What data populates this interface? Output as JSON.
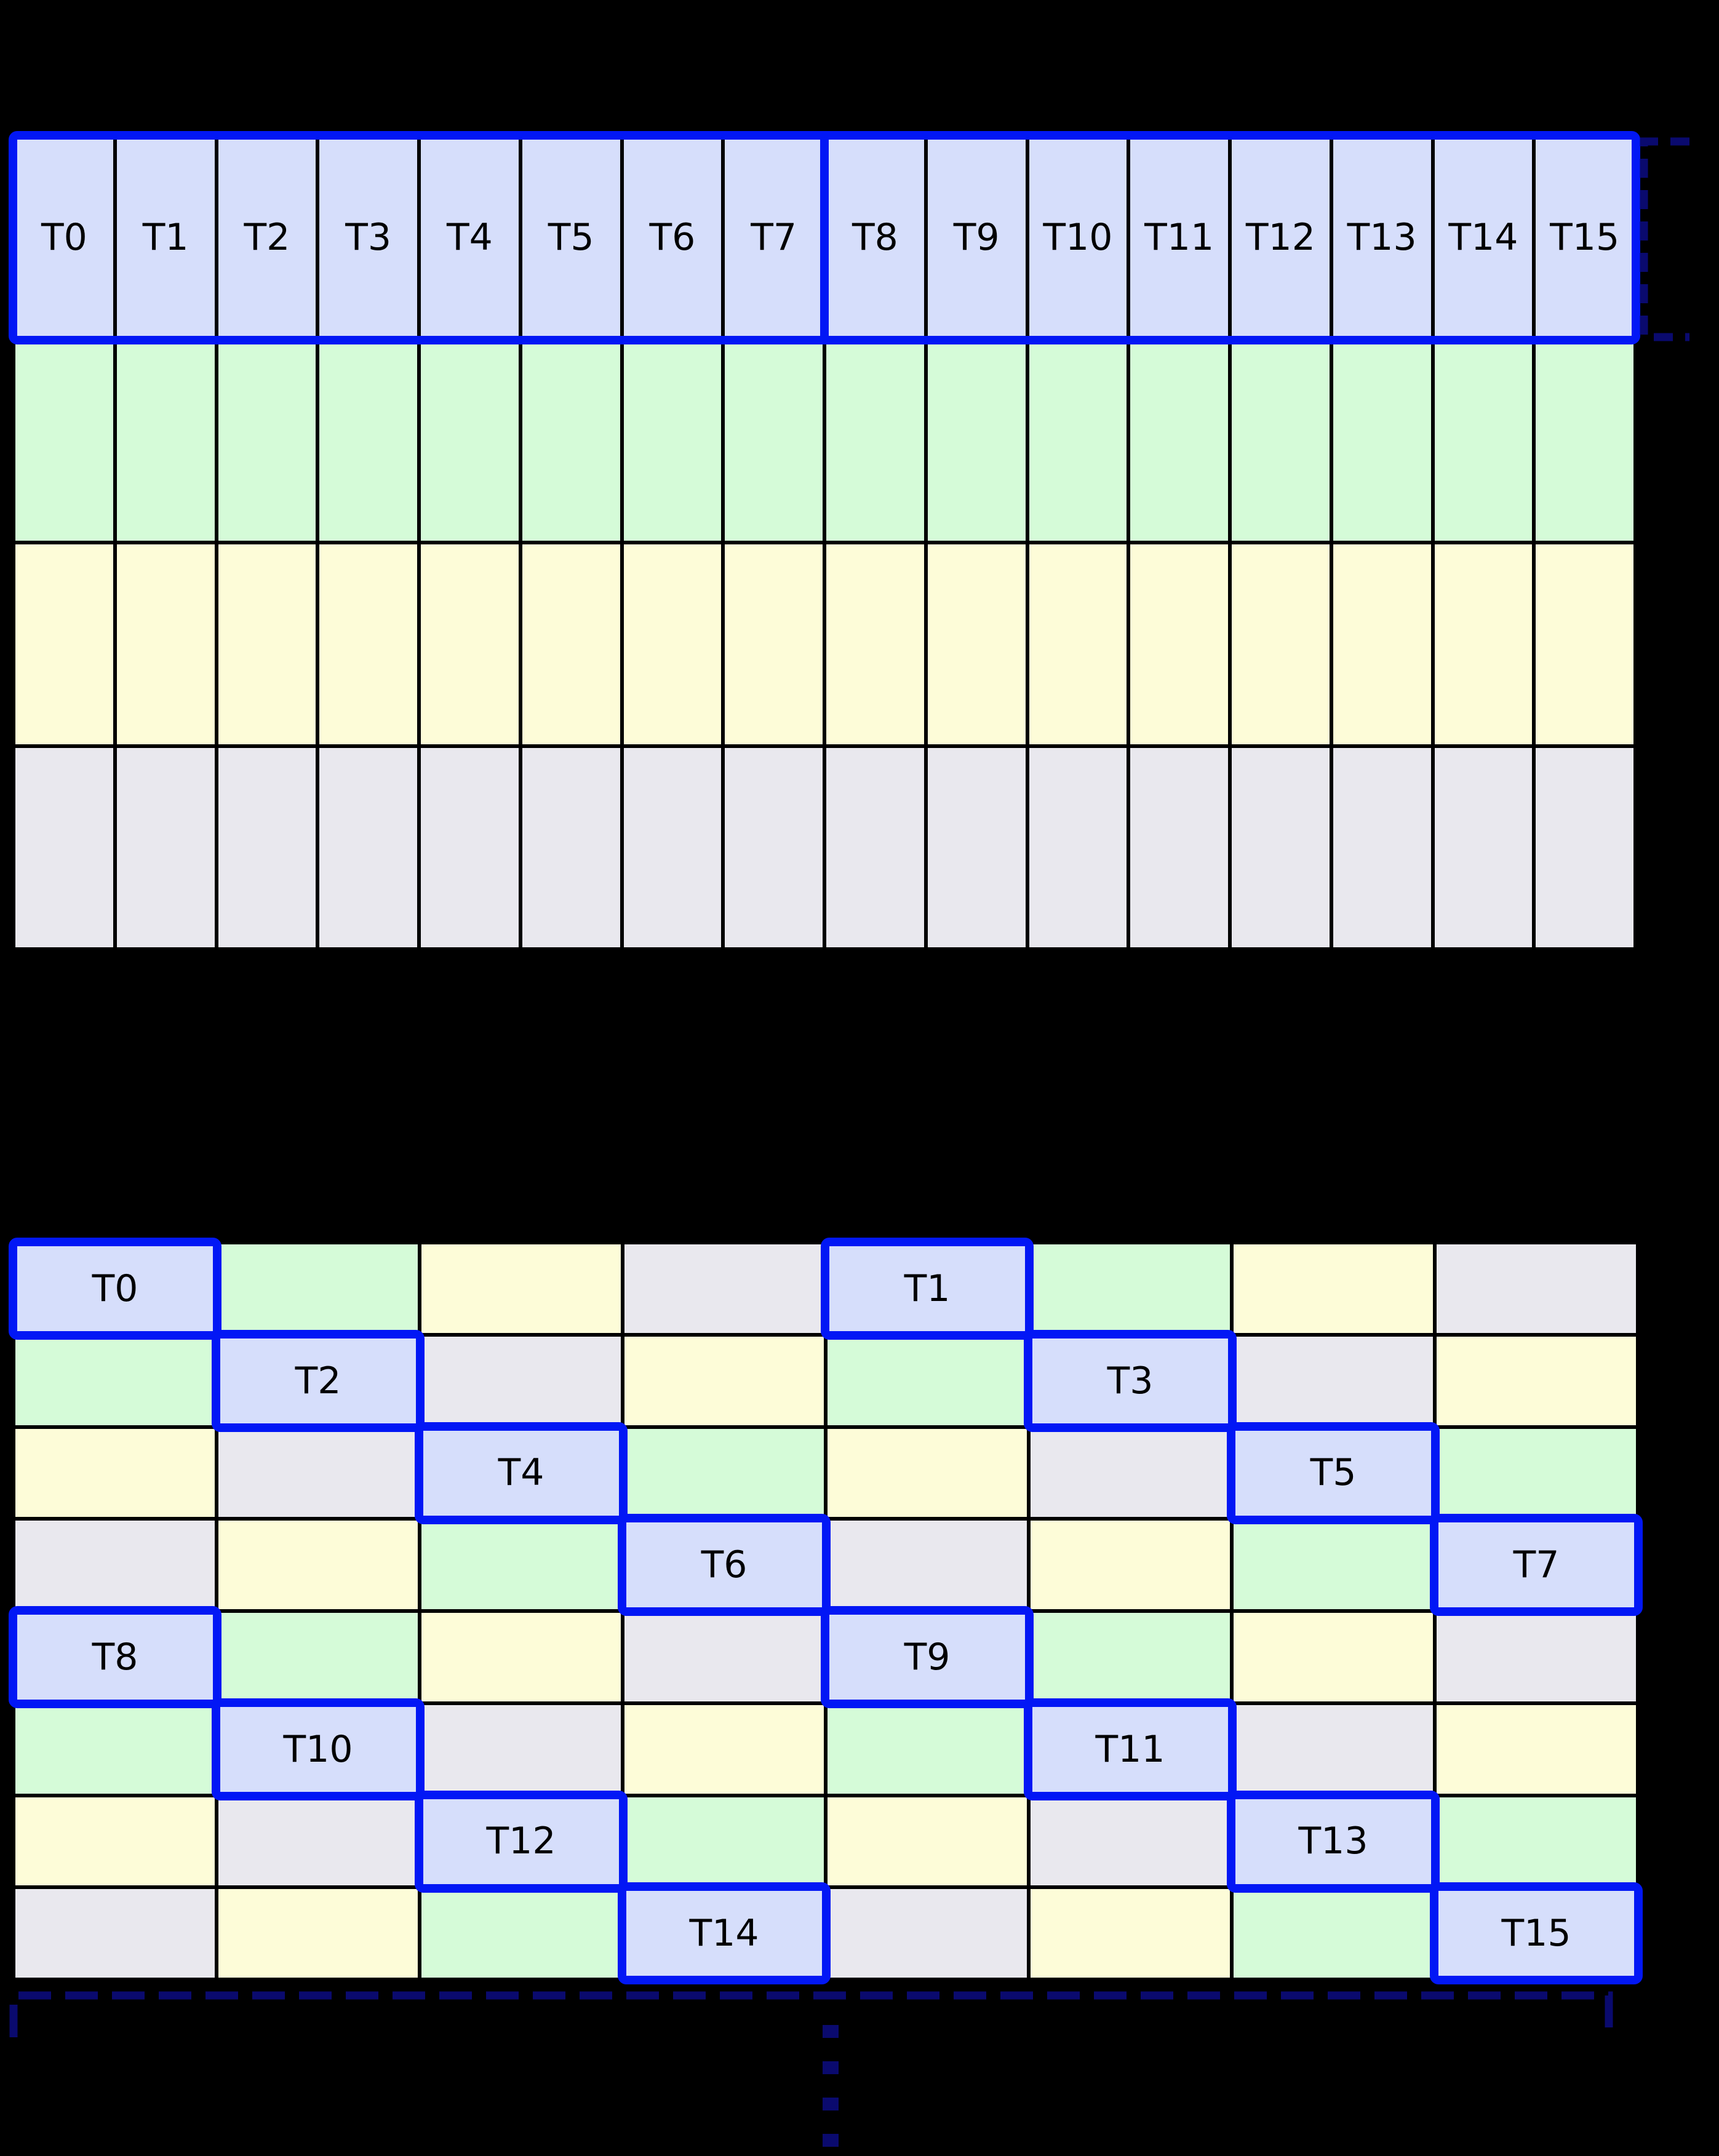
{
  "colors": {
    "background": "#000000",
    "grid_line": "#000000",
    "cell_blue": "#d6defb",
    "cell_green": "#d5fbd8",
    "cell_yellow": "#fdfcd8",
    "cell_gray": "#e9e8ee",
    "highlight_border": "#0217f5",
    "bracket": "#0a0a6e",
    "label_color": "#000000"
  },
  "table1": {
    "rows": 4,
    "cols": 16,
    "row_colors": [
      "blue",
      "green",
      "yellow",
      "gray"
    ],
    "thread_labels": [
      "T0",
      "T1",
      "T2",
      "T3",
      "T4",
      "T5",
      "T6",
      "T7",
      "T8",
      "T9",
      "T10",
      "T11",
      "T12",
      "T13",
      "T14",
      "T15"
    ],
    "highlight_groups": [
      [
        0,
        7
      ],
      [
        8,
        15
      ]
    ]
  },
  "table2": {
    "rows": 8,
    "cols": 8,
    "cells": [
      [
        [
          "blue",
          "T0"
        ],
        [
          "green",
          ""
        ],
        [
          "yellow",
          ""
        ],
        [
          "gray",
          ""
        ],
        [
          "blue",
          "T1"
        ],
        [
          "green",
          ""
        ],
        [
          "yellow",
          ""
        ],
        [
          "gray",
          ""
        ]
      ],
      [
        [
          "green",
          ""
        ],
        [
          "blue",
          "T2"
        ],
        [
          "gray",
          ""
        ],
        [
          "yellow",
          ""
        ],
        [
          "green",
          ""
        ],
        [
          "blue",
          "T3"
        ],
        [
          "gray",
          ""
        ],
        [
          "yellow",
          ""
        ]
      ],
      [
        [
          "yellow",
          ""
        ],
        [
          "gray",
          ""
        ],
        [
          "blue",
          "T4"
        ],
        [
          "green",
          ""
        ],
        [
          "yellow",
          ""
        ],
        [
          "gray",
          ""
        ],
        [
          "blue",
          "T5"
        ],
        [
          "green",
          ""
        ]
      ],
      [
        [
          "gray",
          ""
        ],
        [
          "yellow",
          ""
        ],
        [
          "green",
          ""
        ],
        [
          "blue",
          "T6"
        ],
        [
          "gray",
          ""
        ],
        [
          "yellow",
          ""
        ],
        [
          "green",
          ""
        ],
        [
          "blue",
          "T7"
        ]
      ],
      [
        [
          "blue",
          "T8"
        ],
        [
          "green",
          ""
        ],
        [
          "yellow",
          ""
        ],
        [
          "gray",
          ""
        ],
        [
          "blue",
          "T9"
        ],
        [
          "green",
          ""
        ],
        [
          "yellow",
          ""
        ],
        [
          "gray",
          ""
        ]
      ],
      [
        [
          "green",
          ""
        ],
        [
          "blue",
          "T10"
        ],
        [
          "gray",
          ""
        ],
        [
          "yellow",
          ""
        ],
        [
          "green",
          ""
        ],
        [
          "blue",
          "T11"
        ],
        [
          "gray",
          ""
        ],
        [
          "yellow",
          ""
        ]
      ],
      [
        [
          "yellow",
          ""
        ],
        [
          "gray",
          ""
        ],
        [
          "blue",
          "T12"
        ],
        [
          "green",
          ""
        ],
        [
          "yellow",
          ""
        ],
        [
          "gray",
          ""
        ],
        [
          "blue",
          "T13"
        ],
        [
          "green",
          ""
        ]
      ],
      [
        [
          "gray",
          ""
        ],
        [
          "yellow",
          ""
        ],
        [
          "green",
          ""
        ],
        [
          "blue",
          "T14"
        ],
        [
          "gray",
          ""
        ],
        [
          "yellow",
          ""
        ],
        [
          "green",
          ""
        ],
        [
          "blue",
          "T15"
        ]
      ]
    ]
  },
  "decorations": {
    "continuation_dashes": 4
  }
}
